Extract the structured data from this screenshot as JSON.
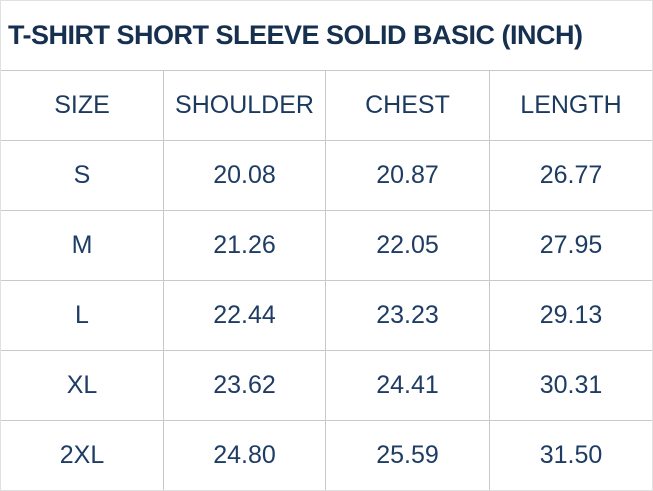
{
  "title": "T-SHIRT SHORT SLEEVE SOLID BASIC (INCH)",
  "unit": "INCH",
  "colors": {
    "text_navy": "#1e3c64",
    "title_navy": "#16304f",
    "grid_line": "#c9c9c9",
    "outer_border": "#e0e0e0",
    "background": "#ffffff"
  },
  "chart_data": {
    "type": "table",
    "title": "T-SHIRT SHORT SLEEVE SOLID BASIC (INCH)",
    "columns": [
      "SIZE",
      "SHOULDER",
      "CHEST",
      "LENGTH"
    ],
    "rows": [
      [
        "S",
        "20.08",
        "20.87",
        "26.77"
      ],
      [
        "M",
        "21.26",
        "22.05",
        "27.95"
      ],
      [
        "L",
        "22.44",
        "23.23",
        "29.13"
      ],
      [
        "XL",
        "23.62",
        "24.41",
        "30.31"
      ],
      [
        "2XL",
        "24.80",
        "25.59",
        "31.50"
      ]
    ],
    "layout_hints": {
      "grid": true,
      "header_row": true,
      "all_cells_centered": true
    }
  }
}
